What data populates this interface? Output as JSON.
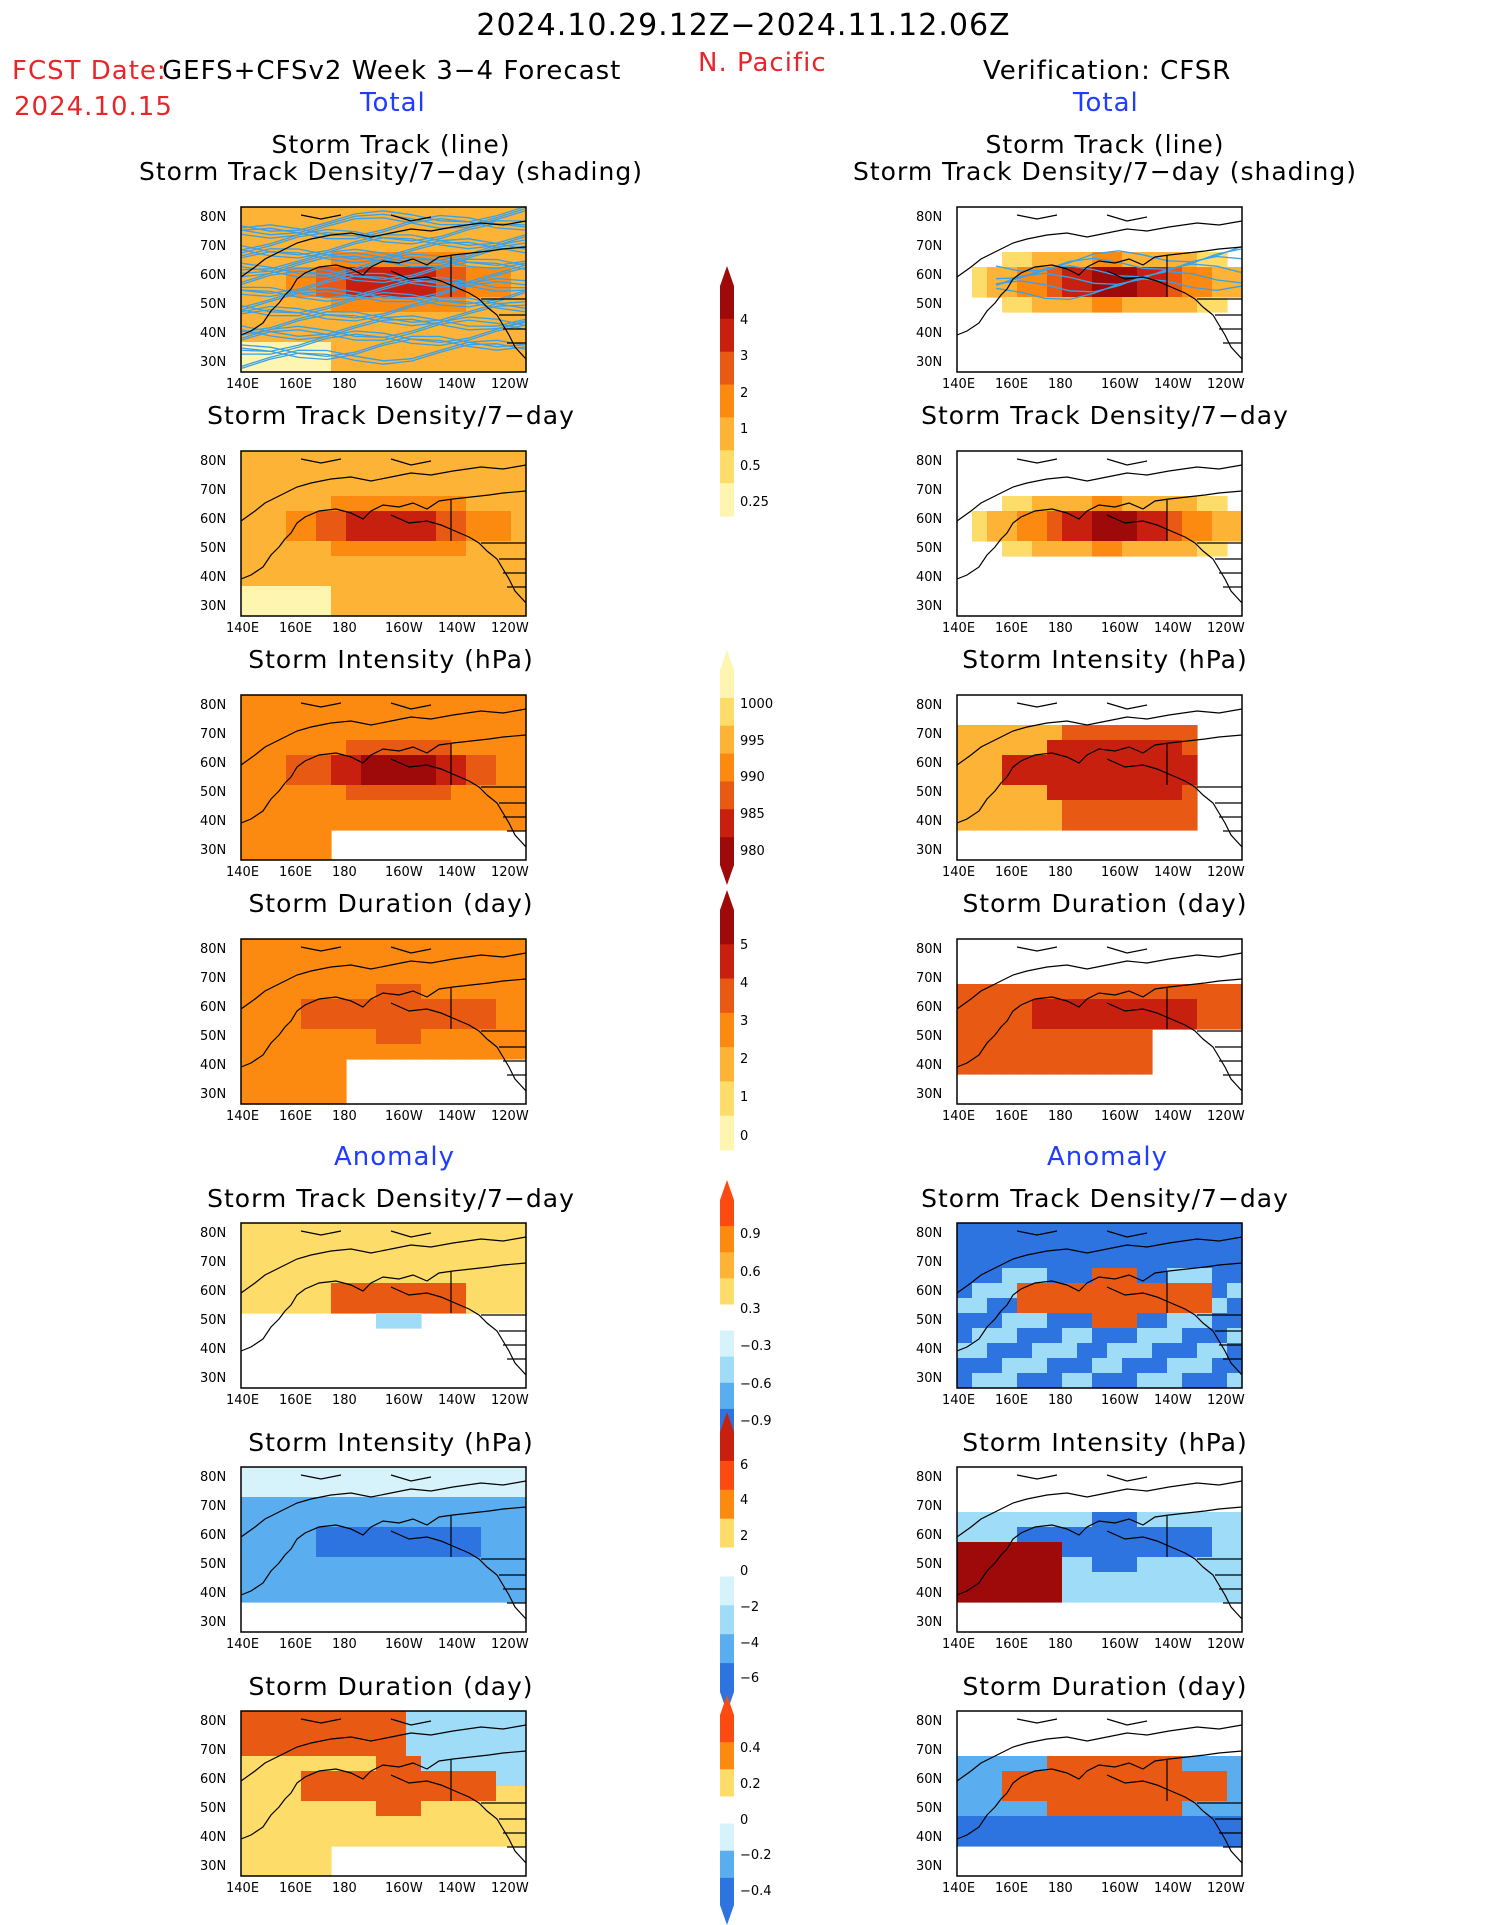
{
  "header": {
    "date_range": "2024.10.29.12Z−2024.11.12.06Z",
    "fcst_date_label": "FCST Date:",
    "fcst_date": "2024.10.15",
    "forecast_name": "GEFS+CFSv2 Week 3−4 Forecast",
    "region": "N. Pacific",
    "verification": "Verification: CFSR",
    "total_left": "Total",
    "total_right": "Total",
    "anomaly_left": "Anomaly",
    "anomaly_right": "Anomaly"
  },
  "panels": {
    "track_title1": "Storm Track (line)",
    "track_title2": "Storm Track Density/7−day (shading)",
    "density": "Storm Track Density/7−day",
    "intensity": "Storm Intensity (hPa)",
    "duration": "Storm Duration (day)"
  },
  "axes": {
    "lat": [
      "80N",
      "70N",
      "60N",
      "50N",
      "40N",
      "30N"
    ],
    "lon": [
      "140E",
      "160E",
      "180",
      "160W",
      "140W",
      "120W"
    ]
  },
  "colorbars": {
    "density_total": [
      "4",
      "3",
      "2",
      "1",
      "0.5",
      "0.25"
    ],
    "intensity_total": [
      "1000",
      "995",
      "990",
      "985",
      "980"
    ],
    "duration_total": [
      "5",
      "4",
      "3",
      "2",
      "1",
      "0"
    ],
    "density_anom": [
      "0.9",
      "0.6",
      "0.3",
      "−0.3",
      "−0.6",
      "−0.9"
    ],
    "intensity_anom": [
      "6",
      "4",
      "2",
      "0",
      "−2",
      "−4",
      "−6"
    ],
    "duration_anom": [
      "0.4",
      "0.2",
      "0",
      "−0.2",
      "−0.4"
    ]
  },
  "colors": {
    "warm": [
      "#fdf5b0",
      "#fddc6a",
      "#fdb335",
      "#fd8a10",
      "#e85a14",
      "#c8200e",
      "#9e0a0a"
    ],
    "cool": [
      "#d6f3fb",
      "#9fdcf7",
      "#5aaef0",
      "#2e74e0",
      "#1a4fd0"
    ],
    "track_line": "#3aa0e8",
    "header_red": "#e8262a",
    "header_blue": "#1f3cff"
  }
}
